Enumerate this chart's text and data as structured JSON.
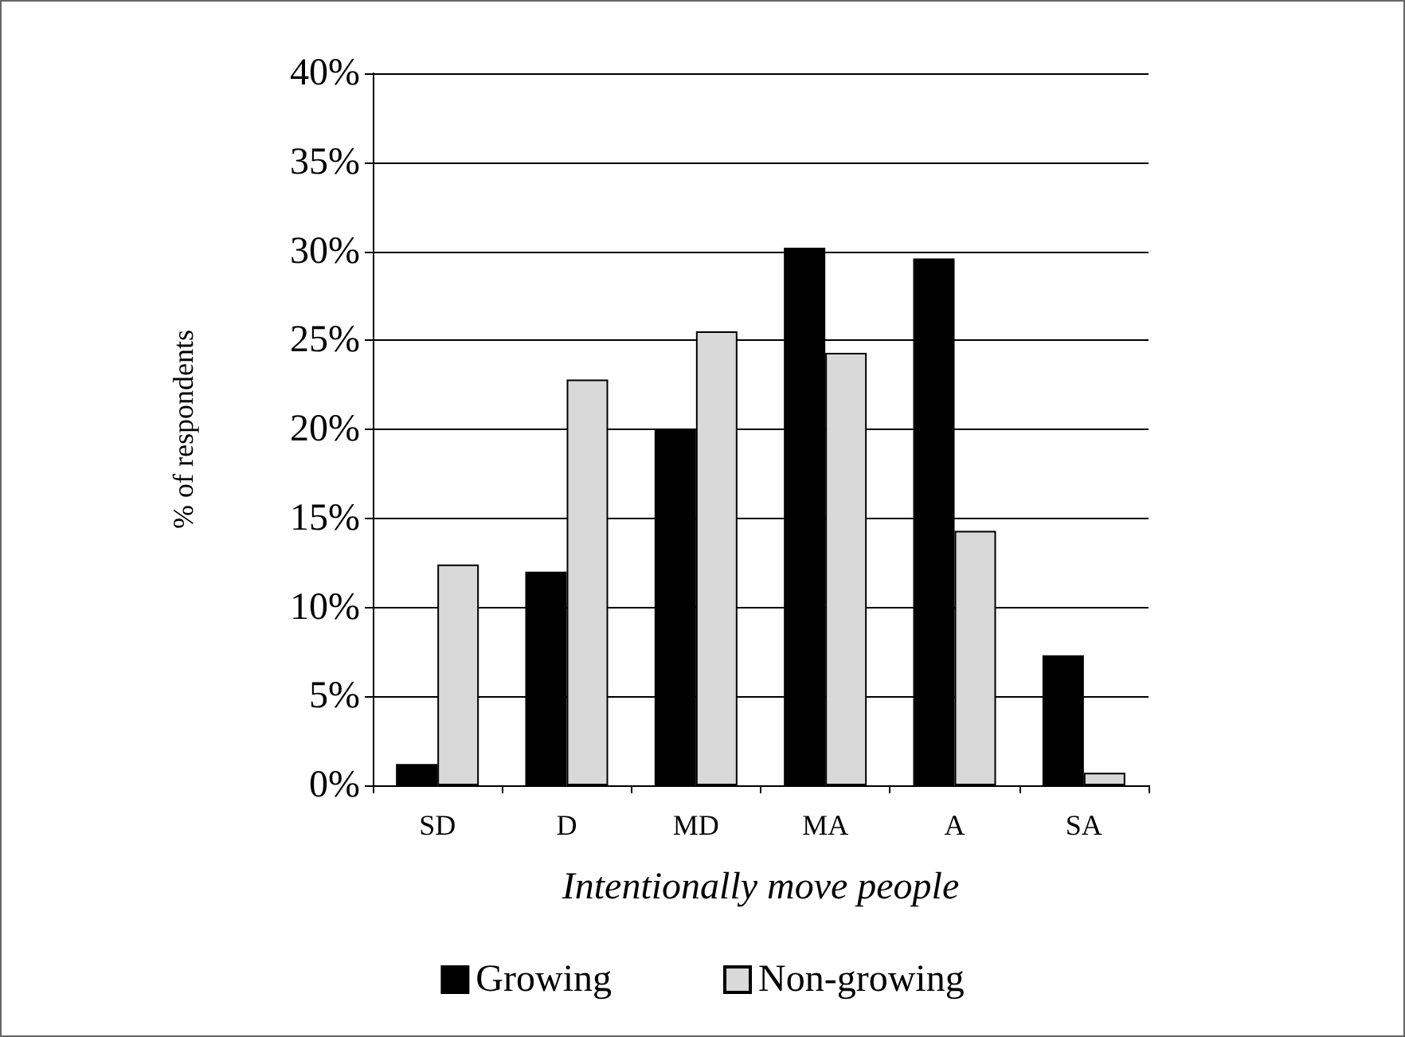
{
  "chart_data": {
    "type": "bar",
    "xlabel": "Intentionally move people",
    "ylabel": "% of respondents",
    "categories": [
      "SD",
      "D",
      "MD",
      "MA",
      "A",
      "SA"
    ],
    "series": [
      {
        "name": "Growing",
        "color": "#000000",
        "values": [
          1.2,
          12,
          20,
          30.2,
          29.6,
          7.3
        ]
      },
      {
        "name": "Non-growing",
        "color": "#d9d9d9",
        "values": [
          12.4,
          22.8,
          25.5,
          24.3,
          14.3,
          0.7
        ]
      }
    ],
    "ylim": [
      0,
      40
    ],
    "yticks": [
      {
        "value": 0,
        "label": "0%"
      },
      {
        "value": 5,
        "label": "5%"
      },
      {
        "value": 10,
        "label": "10%"
      },
      {
        "value": 15,
        "label": "15%"
      },
      {
        "value": 20,
        "label": "20%"
      },
      {
        "value": 25,
        "label": "25%"
      },
      {
        "value": 30,
        "label": "30%"
      },
      {
        "value": 35,
        "label": "35%"
      },
      {
        "value": 40,
        "label": "40%"
      }
    ],
    "grid": "y",
    "legend": "bottom"
  }
}
